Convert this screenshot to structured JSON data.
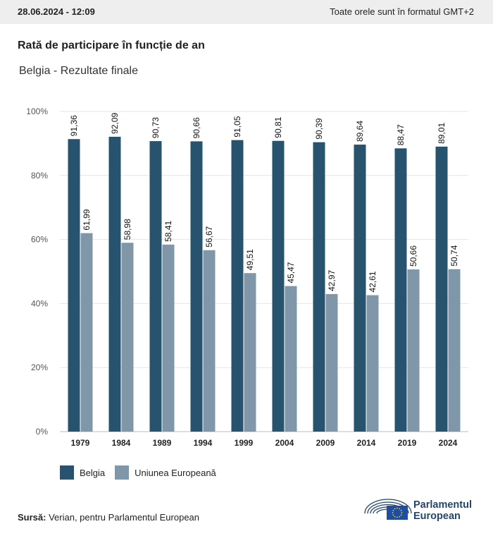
{
  "header": {
    "date": "28.06.2024 - 12:09",
    "timezone_note": "Toate orele sunt în formatul GMT+2"
  },
  "title": "Rată de participare în funcție de an",
  "subtitle": "Belgia - Rezultate finale",
  "colors": {
    "belgia": "#27536f",
    "eu": "#7f97a9",
    "grid": "#e6e6e6",
    "topbar": "#eeeeee",
    "logo_blue": "#24466e",
    "eu_flag": "#1f4ea1",
    "eu_stars": "#f2d233"
  },
  "chart_data": {
    "type": "bar",
    "categories": [
      "1979",
      "1984",
      "1989",
      "1994",
      "1999",
      "2004",
      "2009",
      "2014",
      "2019",
      "2024"
    ],
    "series": [
      {
        "name": "Belgia",
        "values": [
          91.36,
          92.09,
          90.73,
          90.66,
          91.05,
          90.81,
          90.39,
          89.64,
          88.47,
          89.01
        ]
      },
      {
        "name": "Uniunea Europeană",
        "values": [
          61.99,
          58.98,
          58.41,
          56.67,
          49.51,
          45.47,
          42.97,
          42.61,
          50.66,
          50.74
        ]
      }
    ],
    "ylim": [
      0,
      100
    ],
    "yticks": [
      "0%",
      "20%",
      "40%",
      "60%",
      "80%",
      "100%"
    ],
    "grid": true,
    "legend": "bottom-left",
    "data_label_decimal": ","
  },
  "source": {
    "label": "Sursă:",
    "text": "Verian, pentru Parlamentul European"
  },
  "logo": {
    "line1": "Parlamentul",
    "line2": "European"
  }
}
